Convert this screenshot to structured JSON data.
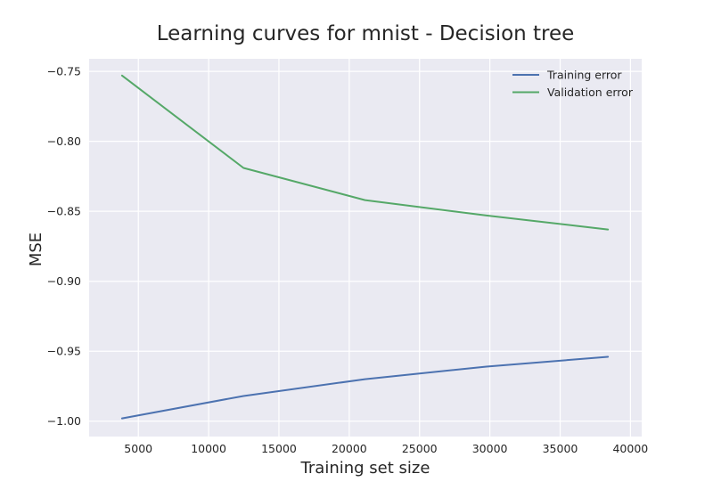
{
  "chart_data": {
    "type": "line",
    "title": "Learning curves for mnist - Decision tree",
    "xlabel": "Training set size",
    "ylabel": "MSE",
    "xlim": [
      1500,
      40800
    ],
    "ylim": [
      -1.011,
      -0.741
    ],
    "xticks": [
      5000,
      10000,
      15000,
      20000,
      25000,
      30000,
      35000,
      40000
    ],
    "yticks": [
      -1.0,
      -0.95,
      -0.9,
      -0.85,
      -0.8,
      -0.75
    ],
    "ytick_labels": [
      "−1.00",
      "−0.95",
      "−0.90",
      "−0.85",
      "−0.80",
      "−0.75"
    ],
    "grid": true,
    "legend_position": "top-right",
    "x": [
      3840,
      12480,
      21120,
      29760,
      38400
    ],
    "series": [
      {
        "name": "Training error",
        "color": "#4c72b0",
        "values": [
          -0.998,
          -0.982,
          -0.97,
          -0.961,
          -0.954
        ]
      },
      {
        "name": "Validation error",
        "color": "#55a868",
        "values": [
          -0.753,
          -0.819,
          -0.842,
          -0.853,
          -0.863
        ]
      }
    ]
  }
}
